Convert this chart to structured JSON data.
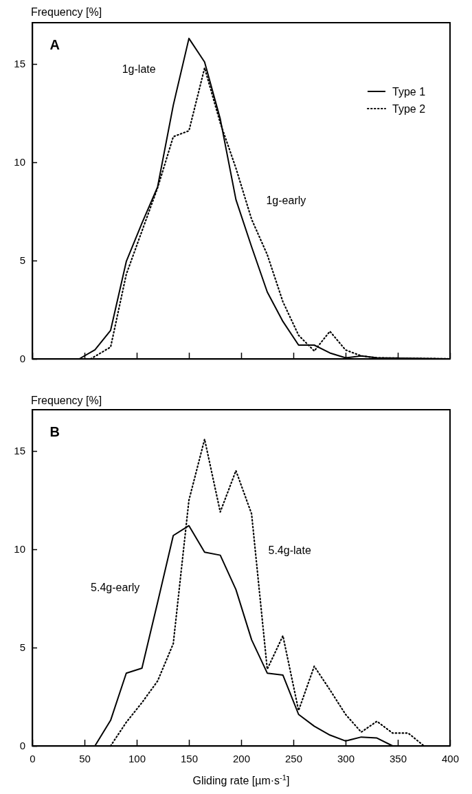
{
  "chart_data": [
    {
      "type": "line",
      "ylabel": "Frequency [%]",
      "xlim": [
        0,
        400
      ],
      "xticks": [
        0,
        50,
        100,
        150,
        200,
        250,
        300,
        350,
        400
      ],
      "ylim": [
        0,
        17.1
      ],
      "yticks": [
        0,
        5,
        10,
        15
      ],
      "tick_labels": "y",
      "legend": "top right",
      "grid": false,
      "marker": "none",
      "annotations": [
        "A",
        "1g-late",
        "1g-early"
      ],
      "series": [
        {
          "name": "Type 1",
          "color": "#000000",
          "line_style": "solid",
          "x": [
            0,
            45,
            60,
            75,
            90,
            105,
            120,
            135,
            150,
            165,
            180,
            195,
            210,
            225,
            240,
            255,
            270,
            285,
            300,
            315,
            330,
            400
          ],
          "values": [
            0,
            0,
            0.46,
            1.45,
            4.95,
            6.9,
            8.75,
            12.9,
            16.3,
            15.1,
            12.2,
            8.1,
            5.7,
            3.4,
            1.9,
            0.7,
            0.7,
            0.3,
            0.05,
            0.15,
            0.05,
            0
          ]
        },
        {
          "name": "Type 2",
          "color": "#000000",
          "line_style": "dotted",
          "x": [
            0,
            56,
            75,
            90,
            105,
            120,
            135,
            150,
            165,
            180,
            195,
            210,
            225,
            240,
            255,
            270,
            285,
            300,
            315,
            330,
            400
          ],
          "values": [
            0,
            0,
            0.6,
            4.3,
            6.5,
            8.7,
            11.3,
            11.6,
            14.8,
            12.0,
            9.7,
            7.1,
            5.3,
            2.9,
            1.2,
            0.4,
            1.4,
            0.45,
            0.15,
            0.05,
            0
          ]
        }
      ]
    },
    {
      "type": "line",
      "ylabel": "Frequency [%]",
      "xlabel": "Gliding rate [µm·s$^{-1}$]",
      "xlim": [
        0,
        400
      ],
      "xticks": [
        0,
        50,
        100,
        150,
        200,
        250,
        300,
        350,
        400
      ],
      "ylim": [
        0,
        17.1
      ],
      "yticks": [
        0,
        5,
        10,
        15
      ],
      "grid": false,
      "legend": false,
      "marker": "none",
      "annotations": [
        "B",
        "5.4g-late",
        "5.4g-early"
      ],
      "series": [
        {
          "color": "#000000",
          "line_style": "solid",
          "x": [
            0,
            60,
            75,
            90,
            105,
            120,
            135,
            150,
            165,
            180,
            195,
            210,
            225,
            240,
            255,
            270,
            285,
            300,
            315,
            330,
            345,
            400
          ],
          "values": [
            0,
            0,
            1.3,
            3.7,
            3.95,
            7.3,
            10.7,
            11.2,
            9.85,
            9.7,
            7.95,
            5.4,
            3.7,
            3.6,
            1.6,
            1.0,
            0.55,
            0.25,
            0.45,
            0.4,
            0,
            0
          ]
        },
        {
          "color": "#000000",
          "line_style": "dotted",
          "x": [
            75,
            90,
            105,
            120,
            135,
            150,
            165,
            180,
            195,
            210,
            225,
            240,
            255,
            270,
            285,
            300,
            315,
            330,
            345,
            360,
            375
          ],
          "values": [
            0,
            1.2,
            2.2,
            3.3,
            5.2,
            12.5,
            15.6,
            11.9,
            14.0,
            11.8,
            3.9,
            5.6,
            1.8,
            4.05,
            2.85,
            1.6,
            0.7,
            1.25,
            0.65,
            0.65,
            0
          ]
        }
      ]
    }
  ]
}
